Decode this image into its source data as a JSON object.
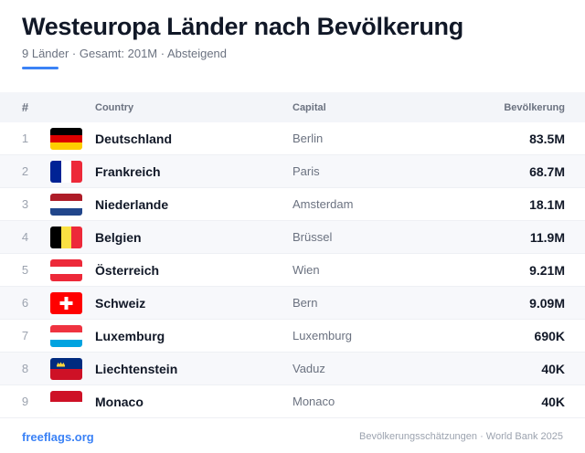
{
  "header": {
    "title": "Westeuropa Länder nach Bevölkerung",
    "subtitle": "9 Länder · Gesamt: 201M · Absteigend"
  },
  "table": {
    "columns": {
      "rank": "#",
      "country": "Country",
      "capital": "Capital",
      "population": "Bevölkerung"
    },
    "rows": [
      {
        "rank": "1",
        "country": "Deutschland",
        "capital": "Berlin",
        "population": "83.5M",
        "flag": "germany-flag-icon"
      },
      {
        "rank": "2",
        "country": "Frankreich",
        "capital": "Paris",
        "population": "68.7M",
        "flag": "france-flag-icon"
      },
      {
        "rank": "3",
        "country": "Niederlande",
        "capital": "Amsterdam",
        "population": "18.1M",
        "flag": "netherlands-flag-icon"
      },
      {
        "rank": "4",
        "country": "Belgien",
        "capital": "Brüssel",
        "population": "11.9M",
        "flag": "belgium-flag-icon"
      },
      {
        "rank": "5",
        "country": "Österreich",
        "capital": "Wien",
        "population": "9.21M",
        "flag": "austria-flag-icon"
      },
      {
        "rank": "6",
        "country": "Schweiz",
        "capital": "Bern",
        "population": "9.09M",
        "flag": "switzerland-flag-icon"
      },
      {
        "rank": "7",
        "country": "Luxemburg",
        "capital": "Luxemburg",
        "population": "690K",
        "flag": "luxembourg-flag-icon"
      },
      {
        "rank": "8",
        "country": "Liechtenstein",
        "capital": "Vaduz",
        "population": "40K",
        "flag": "liechtenstein-flag-icon"
      },
      {
        "rank": "9",
        "country": "Monaco",
        "capital": "Monaco",
        "population": "40K",
        "flag": "monaco-flag-icon"
      }
    ]
  },
  "footer": {
    "brand": "freeflags.org",
    "source": "Bevölkerungsschätzungen · World Bank 2025"
  },
  "colors": {
    "accent": "#3b82f6"
  }
}
